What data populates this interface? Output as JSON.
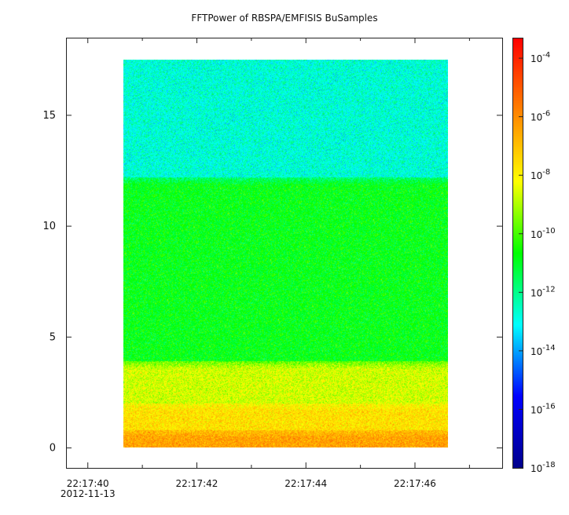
{
  "chart_data": {
    "type": "heatmap",
    "title": "FFTPower of RBSPA/EMFISIS  BuSamples",
    "x": {
      "ticks": [
        "22:17:40",
        "22:17:42",
        "22:17:44",
        "22:17:46"
      ],
      "tick_seconds": [
        40,
        42,
        44,
        46
      ],
      "minor_tick_seconds": [
        41,
        43,
        45,
        47
      ],
      "range_seconds": [
        39.6,
        47.6
      ],
      "data_range_seconds": [
        40.65,
        46.6
      ],
      "date_label": "2012-11-13"
    },
    "y": {
      "ticks": [
        "0",
        "5",
        "10",
        "15"
      ],
      "tick_values": [
        0,
        5,
        10,
        15
      ],
      "range": [
        -0.9,
        18.5
      ],
      "data_range": [
        0,
        17.5
      ]
    },
    "colorbar": {
      "scale": "log",
      "range_exponents": [
        -18,
        -3.3
      ],
      "tick_exponents": [
        -4,
        -6,
        -8,
        -10,
        -12,
        -14,
        -16,
        -18
      ],
      "tick_base": "10",
      "tick_labels": [
        "-4",
        "-6",
        "-8",
        "-10",
        "-12",
        "-14",
        "-16",
        "-18"
      ],
      "colormap": [
        "#00008b",
        "#0000ff",
        "#00ffff",
        "#00ff00",
        "#ffff00",
        "#ff8000",
        "#ff0000"
      ]
    },
    "bands": [
      {
        "y_from": 12.2,
        "y_to": 17.5,
        "log_power": -12.7
      },
      {
        "y_from": 3.9,
        "y_to": 12.2,
        "log_power": -10.8
      },
      {
        "y_from": 2.0,
        "y_to": 3.9,
        "log_power": -8.6
      },
      {
        "y_from": 0.8,
        "y_to": 2.0,
        "log_power": -7.6
      },
      {
        "y_from": 0.0,
        "y_to": 0.8,
        "log_power": -6.4
      }
    ]
  }
}
